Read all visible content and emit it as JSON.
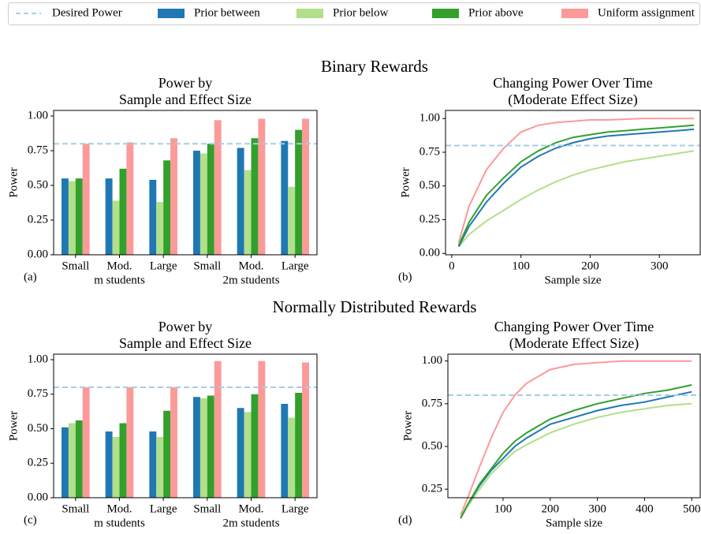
{
  "legend": [
    {
      "name": "Desired Power",
      "color": "#a6cee3",
      "marker": "dashed-line"
    },
    {
      "name": "Prior between",
      "color": "#1f78b4",
      "marker": "patch"
    },
    {
      "name": "Prior below",
      "color": "#b2df8a",
      "marker": "patch"
    },
    {
      "name": "Prior above",
      "color": "#33a02c",
      "marker": "patch"
    },
    {
      "name": "Uniform assignment",
      "color": "#fb9a99",
      "marker": "patch"
    }
  ],
  "sections": [
    "Binary Rewards",
    "Normally Distributed Rewards"
  ],
  "chart_data": [
    {
      "type": "bar",
      "panel_label": "(a)",
      "title": [
        "Power by",
        "Sample and Effect Size"
      ],
      "ylabel": "Power",
      "categories": [
        "Small",
        "Mod.",
        "Large",
        "Small",
        "Mod.",
        "Large"
      ],
      "groups": [
        "m students",
        "2m students"
      ],
      "ylim": [
        0,
        1.04
      ],
      "yticks": [
        {
          "value": 0,
          "label": "0.00"
        },
        {
          "value": 0.25,
          "label": "0.25"
        },
        {
          "value": 0.5,
          "label": "0.50"
        },
        {
          "value": 0.75,
          "label": "0.75"
        },
        {
          "value": 1,
          "label": "1.00"
        }
      ],
      "hline": {
        "value": 0.8,
        "color": "#a6cee3"
      },
      "series": [
        {
          "color": "#1f78b4",
          "values": [
            0.55,
            0.55,
            0.54,
            0.75,
            0.77,
            0.82
          ]
        },
        {
          "color": "#b2df8a",
          "values": [
            0.53,
            0.39,
            0.38,
            0.73,
            0.61,
            0.49
          ]
        },
        {
          "color": "#33a02c",
          "values": [
            0.55,
            0.62,
            0.68,
            0.8,
            0.84,
            0.9
          ]
        },
        {
          "color": "#fb9a99",
          "values": [
            0.8,
            0.81,
            0.84,
            0.97,
            0.98,
            0.98
          ]
        }
      ]
    },
    {
      "type": "line",
      "panel_label": "(b)",
      "title": [
        "Changing Power Over Time",
        "(Moderate Effect Size)"
      ],
      "ylabel": "Power",
      "xlabel": "Sample size",
      "x": [
        10,
        25,
        50,
        75,
        100,
        125,
        150,
        175,
        200,
        225,
        250,
        275,
        300,
        325,
        350
      ],
      "xlim": [
        -9,
        359
      ],
      "xticks": [
        0,
        100,
        200,
        300
      ],
      "ylim": [
        -0.01,
        1.06
      ],
      "yticks": [
        {
          "value": 0,
          "label": "0.00"
        },
        {
          "value": 0.25,
          "label": "0.25"
        },
        {
          "value": 0.5,
          "label": "0.50"
        },
        {
          "value": 0.75,
          "label": "0.75"
        },
        {
          "value": 1,
          "label": "1.00"
        }
      ],
      "hline": {
        "value": 0.8,
        "color": "#a6cee3"
      },
      "series": [
        {
          "color": "#b2df8a",
          "values": [
            0.05,
            0.14,
            0.24,
            0.32,
            0.4,
            0.47,
            0.53,
            0.58,
            0.62,
            0.65,
            0.68,
            0.7,
            0.72,
            0.74,
            0.76
          ]
        },
        {
          "color": "#1f78b4",
          "values": [
            0.05,
            0.2,
            0.38,
            0.52,
            0.64,
            0.72,
            0.78,
            0.82,
            0.85,
            0.87,
            0.88,
            0.89,
            0.9,
            0.91,
            0.92
          ]
        },
        {
          "color": "#33a02c",
          "values": [
            0.06,
            0.23,
            0.43,
            0.56,
            0.68,
            0.76,
            0.82,
            0.86,
            0.88,
            0.9,
            0.91,
            0.92,
            0.93,
            0.94,
            0.95
          ]
        },
        {
          "color": "#fb9a99",
          "values": [
            0.08,
            0.35,
            0.62,
            0.78,
            0.9,
            0.95,
            0.97,
            0.98,
            0.99,
            0.99,
            0.995,
            1.0,
            1.0,
            1.0,
            1.0
          ]
        }
      ]
    },
    {
      "type": "bar",
      "panel_label": "(c)",
      "title": [
        "Power by",
        "Sample and Effect Size"
      ],
      "ylabel": "Power",
      "categories": [
        "Small",
        "Mod.",
        "Large",
        "Small",
        "Mod.",
        "Large"
      ],
      "groups": [
        "m students",
        "2m students"
      ],
      "ylim": [
        0,
        1.04
      ],
      "yticks": [
        {
          "value": 0,
          "label": "0.00"
        },
        {
          "value": 0.25,
          "label": "0.25"
        },
        {
          "value": 0.5,
          "label": "0.50"
        },
        {
          "value": 0.75,
          "label": "0.75"
        },
        {
          "value": 1,
          "label": "1.00"
        }
      ],
      "hline": {
        "value": 0.8,
        "color": "#a6cee3"
      },
      "series": [
        {
          "color": "#1f78b4",
          "values": [
            0.51,
            0.48,
            0.48,
            0.73,
            0.65,
            0.68
          ]
        },
        {
          "color": "#b2df8a",
          "values": [
            0.54,
            0.44,
            0.44,
            0.72,
            0.62,
            0.58
          ]
        },
        {
          "color": "#33a02c",
          "values": [
            0.56,
            0.54,
            0.63,
            0.74,
            0.75,
            0.76
          ]
        },
        {
          "color": "#fb9a99",
          "values": [
            0.8,
            0.8,
            0.8,
            0.99,
            0.99,
            0.98
          ]
        }
      ]
    },
    {
      "type": "line",
      "panel_label": "(d)",
      "title": [
        "Changing Power Over Time",
        "(Moderate Effect Size)"
      ],
      "ylabel": "Power",
      "xlabel": "Sample size",
      "x": [
        10,
        25,
        50,
        75,
        100,
        125,
        150,
        200,
        250,
        300,
        350,
        400,
        450,
        500
      ],
      "xlim": [
        -17,
        518
      ],
      "xticks": [
        100,
        200,
        300,
        400,
        500
      ],
      "ylim": [
        0.2,
        1.04
      ],
      "yticks": [
        {
          "value": 0.25,
          "label": "0.25"
        },
        {
          "value": 0.5,
          "label": "0.50"
        },
        {
          "value": 0.75,
          "label": "0.75"
        },
        {
          "value": 1,
          "label": "1.00"
        }
      ],
      "hline": {
        "value": 0.8,
        "color": "#a6cee3"
      },
      "series": [
        {
          "color": "#b2df8a",
          "values": [
            0.08,
            0.15,
            0.25,
            0.34,
            0.41,
            0.47,
            0.51,
            0.58,
            0.63,
            0.67,
            0.7,
            0.72,
            0.74,
            0.75
          ]
        },
        {
          "color": "#1f78b4",
          "values": [
            0.08,
            0.16,
            0.27,
            0.36,
            0.43,
            0.5,
            0.55,
            0.63,
            0.67,
            0.71,
            0.74,
            0.76,
            0.79,
            0.82
          ]
        },
        {
          "color": "#33a02c",
          "values": [
            0.08,
            0.16,
            0.28,
            0.37,
            0.46,
            0.53,
            0.58,
            0.66,
            0.71,
            0.75,
            0.78,
            0.81,
            0.83,
            0.86
          ]
        },
        {
          "color": "#fb9a99",
          "values": [
            0.1,
            0.2,
            0.38,
            0.55,
            0.7,
            0.8,
            0.87,
            0.95,
            0.98,
            0.99,
            1.0,
            1.0,
            1.0,
            1.0
          ]
        }
      ]
    }
  ]
}
